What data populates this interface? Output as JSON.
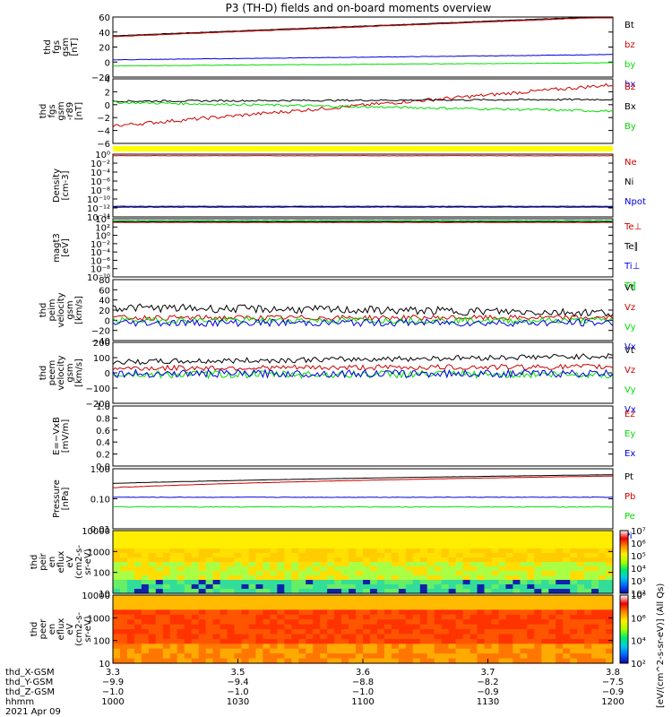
{
  "title": "P3 (TH-D) fields and on-board moments overview",
  "colors": {
    "black": "#000000",
    "red": "#cc0000",
    "green": "#00dd00",
    "blue": "#0000dd",
    "yellow": "#ffff00"
  },
  "chart_data": [
    {
      "id": "fgs-gsm",
      "type": "line",
      "ylabel": [
        "thd",
        "fgs",
        "gsm",
        "[nT]"
      ],
      "ylim": [
        -20,
        60
      ],
      "yticks": [
        "60",
        "40",
        "20",
        "0",
        "−20"
      ],
      "series": [
        {
          "name": "Bt",
          "color": "black",
          "start": 35,
          "end": 61,
          "noise": 0.3
        },
        {
          "name": "bz",
          "color": "red",
          "start": 34,
          "end": 60,
          "noise": 0.3
        },
        {
          "name": "by",
          "color": "green",
          "start": -5,
          "end": -1,
          "noise": 0.3
        },
        {
          "name": "bx",
          "color": "blue",
          "start": 3,
          "end": 10,
          "noise": 0.3
        }
      ]
    },
    {
      "id": "fgs-dsl",
      "type": "line",
      "ylabel": [
        "thd",
        "fgs",
        "gsm",
        "-r89",
        "[nT]"
      ],
      "ylim": [
        -7,
        4
      ],
      "yticks": [
        "4",
        "2",
        "0",
        "−2",
        "−4",
        "−6"
      ],
      "series": [
        {
          "name": "Bz",
          "color": "red",
          "start": -4,
          "end": 3,
          "noise": 0.3
        },
        {
          "name": "Bx",
          "color": "black",
          "start": 0.2,
          "end": 0.5,
          "noise": 0.15
        },
        {
          "name": "By",
          "color": "green",
          "start": 0,
          "end": -1.5,
          "noise": 0.2
        }
      ]
    },
    {
      "id": "density",
      "type": "line",
      "ylabel": [
        "Density",
        "[cm-3]"
      ],
      "ylim": [
        -14,
        2
      ],
      "yticks": [
        "10⁰",
        "10⁻²",
        "10⁻⁴",
        "10⁻⁶",
        "10⁻⁸",
        "10⁻¹⁰",
        "10⁻¹²",
        "10⁻¹⁴"
      ],
      "series": [
        {
          "name": "Ne",
          "color": "red",
          "start": 1.6,
          "end": 1.6,
          "noise": 0.05
        },
        {
          "name": "Ni",
          "color": "black",
          "start": -11.5,
          "end": -11.5,
          "noise": 0.05
        },
        {
          "name": "Npot",
          "color": "blue",
          "start": -11.3,
          "end": -11.3,
          "noise": 0.05
        }
      ]
    },
    {
      "id": "temperature",
      "type": "line",
      "ylabel": [
        "magt3",
        "[eV]"
      ],
      "ylim": [
        -10,
        4
      ],
      "yticks": [
        "10⁴",
        "10²",
        "10⁰",
        "10⁻²",
        "10⁻⁴",
        "10⁻⁶",
        "10⁻⁸",
        "10⁻¹⁰"
      ],
      "series": [
        {
          "name": "Te⊥",
          "color": "red",
          "start": 3.1,
          "end": 3.1,
          "noise": 0.05
        },
        {
          "name": "Te∥",
          "color": "black",
          "start": 3.3,
          "end": 3.3,
          "noise": 0.05
        },
        {
          "name": "Ti⊥",
          "color": "blue",
          "start": 3.5,
          "end": 3.5,
          "noise": 0.05
        },
        {
          "name": "Ti∥",
          "color": "green",
          "start": 3.5,
          "end": 3.5,
          "noise": 0.05
        }
      ]
    },
    {
      "id": "peim-velocity",
      "type": "line",
      "ylabel": [
        "thd",
        "peim",
        "velocity",
        "gsm",
        "[km/s]"
      ],
      "ylim": [
        -40,
        80
      ],
      "yticks": [
        "80",
        "60",
        "40",
        "20",
        "0",
        "−20",
        "−40"
      ],
      "series": [
        {
          "name": "Vt",
          "color": "black",
          "start": 25,
          "end": 15,
          "noise": 8
        },
        {
          "name": "Vz",
          "color": "red",
          "start": 5,
          "end": 5,
          "noise": 5
        },
        {
          "name": "Vy",
          "color": "green",
          "start": 0,
          "end": 0,
          "noise": 6
        },
        {
          "name": "Vx",
          "color": "blue",
          "start": -5,
          "end": -5,
          "noise": 7
        }
      ]
    },
    {
      "id": "peem-velocity",
      "type": "line",
      "ylabel": [
        "thd",
        "peem",
        "velocity",
        "gsm",
        "[km/s]"
      ],
      "ylim": [
        -200,
        200
      ],
      "yticks": [
        "200",
        "100",
        "0",
        "−100",
        "−200"
      ],
      "series": [
        {
          "name": "Vt",
          "color": "black",
          "start": 70,
          "end": 110,
          "noise": 18
        },
        {
          "name": "Vz",
          "color": "red",
          "start": 30,
          "end": 40,
          "noise": 18
        },
        {
          "name": "Vy",
          "color": "green",
          "start": -10,
          "end": -10,
          "noise": 25
        },
        {
          "name": "Vx",
          "color": "blue",
          "start": -5,
          "end": -5,
          "noise": 25
        }
      ]
    },
    {
      "id": "efield",
      "type": "line",
      "ylabel": [
        "E=−VxB",
        "[mV/m]"
      ],
      "ylim": [
        0,
        1
      ],
      "yticks": [
        "1.0",
        "0.8",
        "0.6",
        "0.4",
        "0.2",
        "0.0"
      ],
      "series": [
        {
          "name": "Ez",
          "color": "red"
        },
        {
          "name": "Ey",
          "color": "green"
        },
        {
          "name": "Ex",
          "color": "blue"
        }
      ]
    },
    {
      "id": "pressure",
      "type": "line",
      "ylabel": [
        "Pressure",
        "[nPa]"
      ],
      "ylim": [
        0.01,
        3
      ],
      "yticks": [
        "1.00",
        "0.10",
        "0.01"
      ],
      "series": [
        {
          "name": "Pt",
          "color": "black",
          "start": 0.75,
          "end": 1.7,
          "noise": 0.01
        },
        {
          "name": "Pb",
          "color": "red",
          "start": 0.5,
          "end": 1.5,
          "noise": 0.01
        },
        {
          "name": "Pe",
          "color": "green",
          "start": 0.08,
          "end": 0.08,
          "noise": 0.003
        },
        {
          "name": "Pi",
          "color": "blue",
          "start": 0.2,
          "end": 0.2,
          "noise": 0.005
        }
      ]
    },
    {
      "id": "peir-spec",
      "type": "heatmap",
      "ylabel": [
        "thd",
        "peir",
        "en",
        "eflux",
        "eV",
        "(cm2-s-",
        "sr-eV)"
      ],
      "ylim": [
        5,
        20000
      ],
      "yticks": [
        "10000",
        "1000",
        "100",
        "10"
      ]
    },
    {
      "id": "peer-spec",
      "type": "heatmap",
      "ylabel": [
        "thd",
        "peer",
        "en",
        "eflux",
        "eV",
        "(cm2-s-",
        "sr-eV)"
      ],
      "ylim": [
        5,
        20000
      ],
      "yticks": [
        "10000",
        "1000",
        "100",
        "10"
      ]
    }
  ],
  "colorbar_upper": {
    "ticks": [
      "10⁷",
      "10⁶",
      "10⁵",
      "10⁴",
      "10³",
      "10²"
    ]
  },
  "colorbar_lower": {
    "ticks": [
      "10⁸",
      "10⁶",
      "10⁴",
      "10²"
    ]
  },
  "colorbar_label": "[eV/(cm^2-s-sr-eV)] (All Qs)",
  "x_axis": {
    "rows": [
      {
        "label": "thd_X-GSM",
        "values": [
          "3.3",
          "3.5",
          "3.6",
          "3.7",
          "3.8"
        ]
      },
      {
        "label": "thd_Y-GSM",
        "values": [
          "−9.9",
          "−9.4",
          "−8.8",
          "−8.2",
          "−7.5"
        ]
      },
      {
        "label": "thd_Z-GSM",
        "values": [
          "−1.0",
          "−1.0",
          "−1.0",
          "−0.9",
          "−0.9"
        ]
      },
      {
        "label": "hhmm",
        "values": [
          "1000",
          "1030",
          "1100",
          "1130",
          "1200"
        ]
      }
    ],
    "date": "2021 Apr 09"
  }
}
